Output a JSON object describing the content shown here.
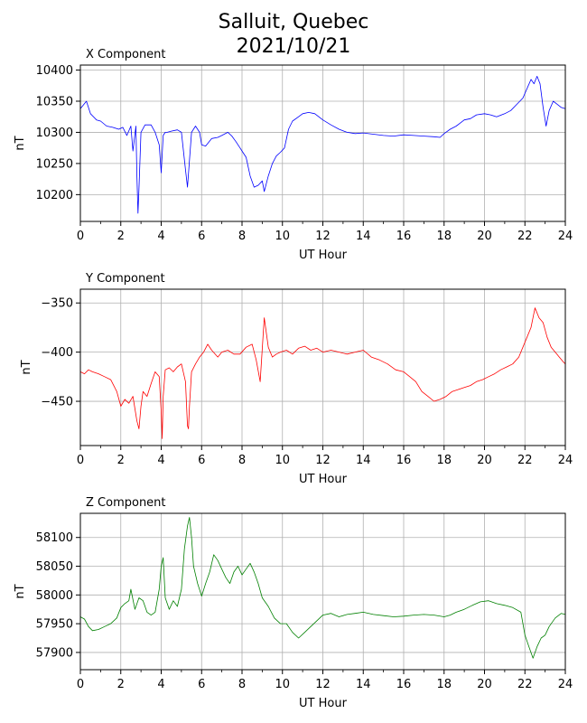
{
  "figure": {
    "title_line1": "Salluit, Quebec",
    "title_line2": "2021/10/21"
  },
  "chart_data": [
    {
      "type": "line",
      "title": "X Component",
      "xlabel": "UT Hour",
      "ylabel": "nT",
      "xlim": [
        0,
        24
      ],
      "ylim": [
        10157,
        10408
      ],
      "xticks": [
        0,
        2,
        4,
        6,
        8,
        10,
        12,
        14,
        16,
        18,
        20,
        22,
        24
      ],
      "yticks": [
        10200,
        10250,
        10300,
        10350,
        10400
      ],
      "grid": true,
      "series_color": "#0000ff",
      "x": [
        0,
        0.3,
        0.5,
        0.8,
        1.0,
        1.3,
        1.6,
        1.9,
        2.1,
        2.3,
        2.5,
        2.6,
        2.75,
        2.8,
        2.85,
        2.9,
        3.0,
        3.2,
        3.5,
        3.7,
        3.9,
        4.0,
        4.1,
        4.2,
        4.3,
        4.5,
        4.8,
        5.0,
        5.2,
        5.3,
        5.4,
        5.5,
        5.6,
        5.7,
        5.9,
        6.0,
        6.2,
        6.5,
        6.8,
        7.0,
        7.3,
        7.5,
        7.7,
        7.9,
        8.0,
        8.2,
        8.4,
        8.6,
        8.8,
        9.0,
        9.1,
        9.3,
        9.5,
        9.7,
        9.9,
        10.1,
        10.3,
        10.5,
        10.8,
        11.0,
        11.3,
        11.6,
        12.0,
        12.4,
        12.8,
        13.2,
        13.6,
        14.0,
        14.5,
        15.0,
        15.5,
        16.0,
        16.5,
        17.0,
        17.5,
        17.8,
        18.0,
        18.3,
        18.6,
        19.0,
        19.3,
        19.6,
        20.0,
        20.3,
        20.6,
        21.0,
        21.3,
        21.6,
        21.9,
        22.1,
        22.3,
        22.45,
        22.6,
        22.75,
        22.9,
        23.05,
        23.2,
        23.4,
        23.6,
        23.8,
        24.0
      ],
      "y": [
        10338,
        10350,
        10330,
        10320,
        10318,
        10310,
        10308,
        10305,
        10308,
        10295,
        10310,
        10270,
        10310,
        10230,
        10170,
        10210,
        10300,
        10312,
        10312,
        10300,
        10280,
        10235,
        10295,
        10300,
        10300,
        10302,
        10304,
        10300,
        10240,
        10212,
        10255,
        10300,
        10305,
        10310,
        10300,
        10280,
        10278,
        10290,
        10292,
        10295,
        10300,
        10294,
        10285,
        10275,
        10270,
        10260,
        10230,
        10212,
        10215,
        10222,
        10205,
        10230,
        10250,
        10262,
        10268,
        10275,
        10305,
        10318,
        10325,
        10330,
        10332,
        10330,
        10320,
        10312,
        10305,
        10300,
        10298,
        10299,
        10297,
        10295,
        10294,
        10296,
        10295,
        10294,
        10293,
        10292,
        10298,
        10305,
        10310,
        10320,
        10322,
        10328,
        10330,
        10328,
        10325,
        10330,
        10335,
        10345,
        10355,
        10370,
        10385,
        10378,
        10390,
        10378,
        10340,
        10310,
        10335,
        10350,
        10345,
        10340,
        10338
      ]
    },
    {
      "type": "line",
      "title": "Y Component",
      "xlabel": "UT Hour",
      "ylabel": "nT",
      "xlim": [
        0,
        24
      ],
      "ylim": [
        -495,
        -336
      ],
      "xticks": [
        0,
        2,
        4,
        6,
        8,
        10,
        12,
        14,
        16,
        18,
        20,
        22,
        24
      ],
      "yticks": [
        -350,
        -400,
        -450
      ],
      "grid": true,
      "series_color": "#ff0000",
      "x": [
        0,
        0.2,
        0.4,
        0.6,
        0.9,
        1.2,
        1.5,
        1.8,
        2.0,
        2.2,
        2.4,
        2.6,
        2.8,
        2.9,
        3.0,
        3.1,
        3.3,
        3.5,
        3.7,
        3.9,
        4.0,
        4.05,
        4.1,
        4.2,
        4.4,
        4.6,
        4.8,
        5.0,
        5.2,
        5.3,
        5.35,
        5.4,
        5.5,
        5.7,
        5.9,
        6.1,
        6.3,
        6.5,
        6.8,
        7.0,
        7.3,
        7.6,
        7.9,
        8.2,
        8.5,
        8.7,
        8.9,
        9.1,
        9.3,
        9.5,
        9.7,
        9.9,
        10.2,
        10.5,
        10.8,
        11.1,
        11.4,
        11.7,
        12.0,
        12.4,
        12.8,
        13.2,
        13.6,
        14.0,
        14.4,
        14.8,
        15.2,
        15.6,
        16.0,
        16.3,
        16.6,
        16.9,
        17.2,
        17.5,
        17.8,
        18.1,
        18.4,
        18.7,
        19.0,
        19.3,
        19.6,
        19.9,
        20.2,
        20.5,
        20.8,
        21.1,
        21.4,
        21.7,
        21.9,
        22.1,
        22.3,
        22.5,
        22.7,
        22.9,
        23.1,
        23.3,
        23.5,
        23.7,
        23.9,
        24.0
      ],
      "y": [
        -420,
        -422,
        -418,
        -420,
        -422,
        -425,
        -428,
        -440,
        -455,
        -448,
        -452,
        -445,
        -470,
        -478,
        -455,
        -440,
        -445,
        -432,
        -420,
        -425,
        -460,
        -488,
        -445,
        -418,
        -416,
        -420,
        -415,
        -412,
        -430,
        -475,
        -478,
        -455,
        -420,
        -412,
        -405,
        -400,
        -392,
        -398,
        -405,
        -400,
        -398,
        -402,
        -402,
        -395,
        -392,
        -408,
        -430,
        -365,
        -395,
        -405,
        -402,
        -400,
        -398,
        -402,
        -396,
        -394,
        -398,
        -396,
        -400,
        -398,
        -400,
        -402,
        -400,
        -398,
        -405,
        -408,
        -412,
        -418,
        -420,
        -425,
        -430,
        -440,
        -445,
        -450,
        -448,
        -445,
        -440,
        -438,
        -436,
        -434,
        -430,
        -428,
        -425,
        -422,
        -418,
        -415,
        -412,
        -405,
        -395,
        -385,
        -375,
        -355,
        -365,
        -370,
        -385,
        -395,
        -400,
        -405,
        -410,
        -412
      ]
    },
    {
      "type": "line",
      "title": "Z Component",
      "xlabel": "UT Hour",
      "ylabel": "nT",
      "xlim": [
        0,
        24
      ],
      "ylim": [
        57870,
        58142
      ],
      "xticks": [
        0,
        2,
        4,
        6,
        8,
        10,
        12,
        14,
        16,
        18,
        20,
        22,
        24
      ],
      "yticks": [
        57900,
        57950,
        58000,
        58050,
        58100
      ],
      "grid": true,
      "series_color": "#008000",
      "x": [
        0,
        0.2,
        0.4,
        0.6,
        0.9,
        1.2,
        1.5,
        1.8,
        2.0,
        2.2,
        2.4,
        2.5,
        2.7,
        2.9,
        3.1,
        3.3,
        3.5,
        3.7,
        3.9,
        4.0,
        4.1,
        4.2,
        4.4,
        4.6,
        4.8,
        5.0,
        5.15,
        5.3,
        5.4,
        5.5,
        5.6,
        5.8,
        6.0,
        6.2,
        6.4,
        6.6,
        6.8,
        7.0,
        7.2,
        7.4,
        7.6,
        7.8,
        8.0,
        8.2,
        8.4,
        8.6,
        8.8,
        9.0,
        9.3,
        9.6,
        9.9,
        10.2,
        10.5,
        10.8,
        11.1,
        11.4,
        11.7,
        12.0,
        12.4,
        12.8,
        13.2,
        13.6,
        14.0,
        14.5,
        15.0,
        15.5,
        16.0,
        16.5,
        17.0,
        17.5,
        18.0,
        18.3,
        18.6,
        19.0,
        19.4,
        19.8,
        20.2,
        20.6,
        21.0,
        21.4,
        21.8,
        22.0,
        22.2,
        22.4,
        22.6,
        22.8,
        23.0,
        23.2,
        23.5,
        23.8,
        24.0
      ],
      "y": [
        57962,
        57958,
        57945,
        57938,
        57940,
        57945,
        57950,
        57960,
        57978,
        57985,
        57990,
        58010,
        57975,
        57995,
        57990,
        57970,
        57965,
        57970,
        58010,
        58050,
        58065,
        57995,
        57975,
        57990,
        57980,
        58010,
        58080,
        58120,
        58135,
        58100,
        58050,
        58020,
        57998,
        58020,
        58040,
        58070,
        58060,
        58045,
        58030,
        58020,
        58040,
        58050,
        58035,
        58045,
        58055,
        58040,
        58020,
        57995,
        57980,
        57960,
        57950,
        57950,
        57935,
        57925,
        57935,
        57945,
        57955,
        57965,
        57968,
        57962,
        57966,
        57968,
        57970,
        57966,
        57964,
        57962,
        57963,
        57965,
        57966,
        57965,
        57962,
        57965,
        57970,
        57975,
        57982,
        57988,
        57990,
        57985,
        57982,
        57978,
        57970,
        57930,
        57910,
        57890,
        57910,
        57925,
        57930,
        57945,
        57960,
        57968,
        57966
      ]
    }
  ]
}
